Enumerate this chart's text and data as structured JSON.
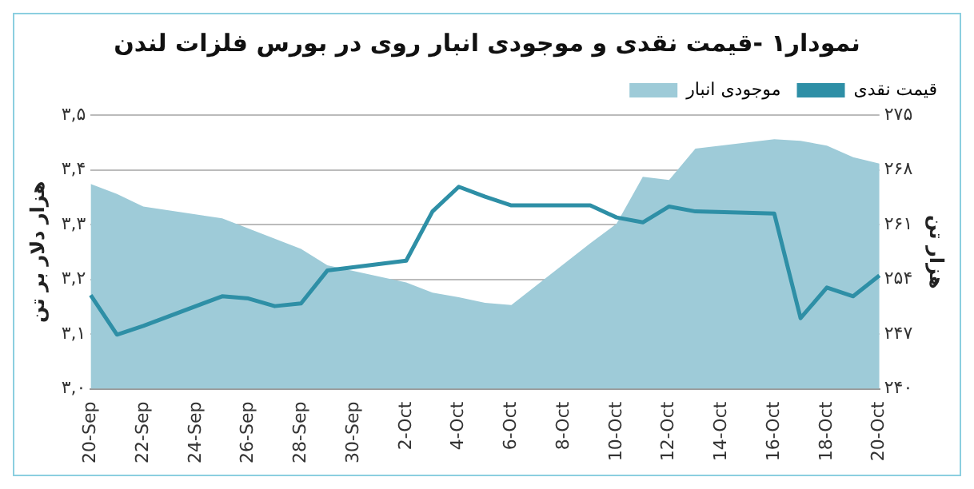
{
  "chart_data": {
    "type": "line",
    "title": "نمودار۱ -قیمت نقدی و موجودی انبار روی در بورس فلزات لندن",
    "ylabel": "هزار دلار بر تن",
    "y2label": "هزار تن",
    "categories": [
      "20-Sep",
      null,
      "22-Sep",
      null,
      "24-Sep",
      null,
      "26-Sep",
      null,
      "28-Sep",
      null,
      "30-Sep",
      null,
      "2-Oct",
      null,
      "4-Oct",
      null,
      "6-Oct",
      null,
      "8-Oct",
      null,
      "10-Oct",
      null,
      "12-Oct",
      null,
      "14-Oct",
      null,
      "16-Oct",
      null,
      "18-Oct",
      null,
      "20-Oct"
    ],
    "series": [
      {
        "name": "موجودی انبار",
        "type": "area",
        "axis": "y2",
        "color": "#9ecbd8",
        "values": [
          266.2,
          264.9,
          263.3,
          null,
          null,
          261.8,
          260.5,
          259.2,
          257.9,
          255.8,
          null,
          null,
          253.6,
          252.3,
          251.7,
          251.0,
          250.7,
          null,
          null,
          258.6,
          261.1,
          267.1,
          266.7,
          270.7,
          null,
          null,
          271.9,
          271.7,
          271.1,
          269.6,
          268.8
        ]
      },
      {
        "name": "قیمت نقدی",
        "type": "line",
        "color": "#2e8fa6",
        "values": [
          3.171,
          3.099,
          3.115,
          null,
          null,
          3.169,
          3.165,
          3.151,
          3.156,
          3.216,
          null,
          null,
          3.234,
          3.324,
          3.369,
          3.351,
          3.335,
          null,
          null,
          3.335,
          3.313,
          3.304,
          3.333,
          3.324,
          null,
          null,
          3.32,
          3.129,
          3.185,
          3.169,
          3.207
        ]
      }
    ],
    "ylim": [
      3.0,
      3.5
    ],
    "yticks": [
      {
        "value": 3.0,
        "label": "۳,۰"
      },
      {
        "value": 3.1,
        "label": "۳,۱"
      },
      {
        "value": 3.2,
        "label": "۳,۲"
      },
      {
        "value": 3.3,
        "label": "۳,۳"
      },
      {
        "value": 3.4,
        "label": "۳,۴"
      },
      {
        "value": 3.5,
        "label": "۳,۵"
      }
    ],
    "y2lim": [
      240,
      275
    ],
    "y2ticks": [
      {
        "value": 240,
        "label": "۲۴۰"
      },
      {
        "value": 247,
        "label": "۲۴۷"
      },
      {
        "value": 254,
        "label": "۲۵۴"
      },
      {
        "value": 261,
        "label": "۲۶۱"
      },
      {
        "value": 268,
        "label": "۲۶۸"
      },
      {
        "value": 275,
        "label": "۲۷۵"
      }
    ],
    "grid": "y",
    "legend": "top",
    "marker": "none",
    "line_style": "solid"
  }
}
